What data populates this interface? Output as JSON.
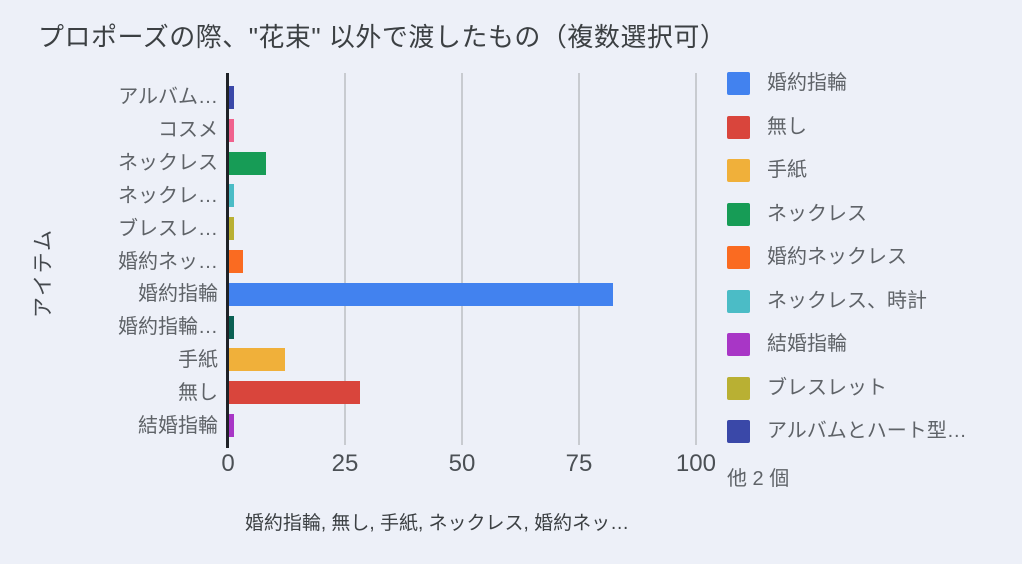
{
  "colors": {
    "background": "#EDF0F8",
    "gridline": "#C8CBD0",
    "axis_line": "#1F2227",
    "title_text": "#3C4043",
    "label_text": "#5F6368"
  },
  "chart_data": {
    "type": "bar",
    "orientation": "horizontal",
    "title": "プロポーズの際、\"花束\" 以外で渡したもの（複数選択可）",
    "ylabel": "アイテム",
    "xlabel": "婚約指輪, 無し, 手紙, ネックレス, 婚約ネッ…",
    "x_ticks": [
      0,
      25,
      50,
      75,
      100
    ],
    "xlim": [
      0,
      104.5
    ],
    "grid": true,
    "legend_position": "right",
    "categories": [
      "アルバム…",
      "コスメ",
      "ネックレス",
      "ネックレ…",
      "ブレスレ…",
      "婚約ネッ…",
      "婚約指輪",
      "婚約指輪…",
      "手紙",
      "無し",
      "結婚指輪"
    ],
    "values": [
      1,
      1,
      8,
      1,
      1,
      3,
      82,
      1,
      12,
      28,
      1
    ],
    "bar_colors": [
      "#3A48A8",
      "#F0628E",
      "#179C56",
      "#4BBCC6",
      "#B9B033",
      "#FA6B21",
      "#4282EF",
      "#0A6053",
      "#F0B03A",
      "#D9453C",
      "#A836C6"
    ],
    "legend": [
      {
        "label": "婚約指輪",
        "color": "#4282EF"
      },
      {
        "label": "無し",
        "color": "#D9453C"
      },
      {
        "label": "手紙",
        "color": "#F0B03A"
      },
      {
        "label": "ネックレス",
        "color": "#179C56"
      },
      {
        "label": "婚約ネックレス",
        "color": "#FA6B21"
      },
      {
        "label": "ネックレス、時計",
        "color": "#4BBCC6"
      },
      {
        "label": "結婚指輪",
        "color": "#A836C6"
      },
      {
        "label": "ブレスレット",
        "color": "#B9B033"
      },
      {
        "label": "アルバムとハート型…",
        "color": "#3A48A8"
      }
    ],
    "legend_more": "他 2 個"
  }
}
